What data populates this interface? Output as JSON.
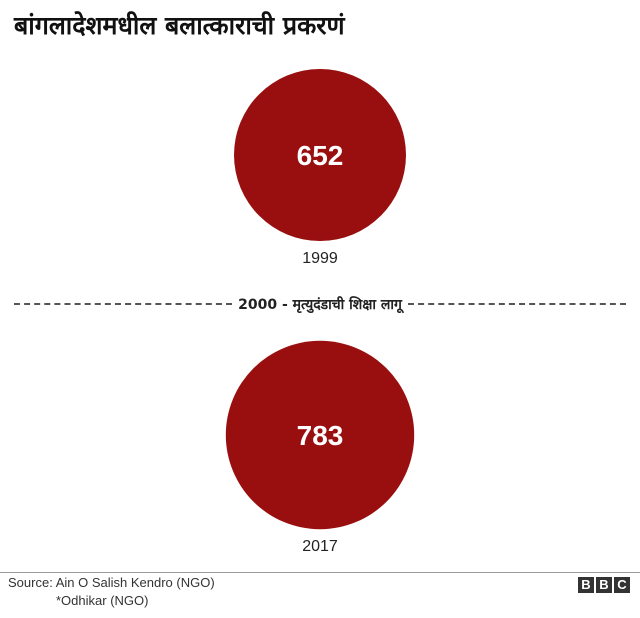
{
  "title": "बांगलादेशमधील बलात्काराची प्रकरणं",
  "divider": {
    "label": "2000 - मृत्युदंडाची शिक्षा लागू"
  },
  "chart_data": {
    "type": "bubble",
    "title": "बांगलादेशमधील बलात्काराची प्रकरणं",
    "categories": [
      "1999",
      "2017"
    ],
    "values": [
      652,
      783
    ],
    "annotation": "2000 - मृत्युदंडाची शिक्षा लागू",
    "color": "#990f0f"
  },
  "source": {
    "line1": "Source: Ain O Salish Kendro (NGO)",
    "line2": "*Odhikar (NGO)"
  },
  "logo": {
    "letters": [
      "B",
      "B",
      "C"
    ]
  }
}
